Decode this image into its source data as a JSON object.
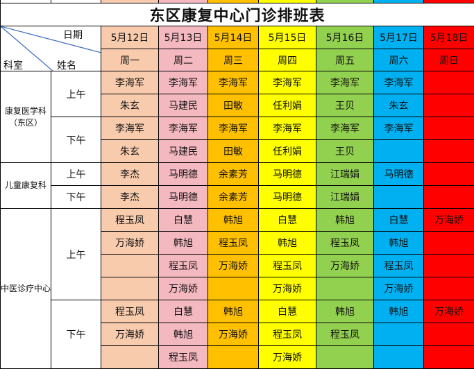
{
  "title": "东区康复中心门诊排班表",
  "corner": {
    "date_label": "日期",
    "dept_label": "科室",
    "name_label": "姓名"
  },
  "day_colors": [
    "#f8cbad",
    "#f4b8c0",
    "#ffc000",
    "#ffff00",
    "#92d050",
    "#00b0f0",
    "#ff0000"
  ],
  "dates": [
    "5月12日",
    "5月13日",
    "5月14日",
    "5月15日",
    "5月16日",
    "5月17日",
    "5月18日"
  ],
  "weekdays": [
    "周一",
    "周二",
    "周三",
    "周四",
    "周五",
    "周六",
    "周日"
  ],
  "departments": [
    {
      "name": "康复医学科（东区）",
      "sessions": [
        {
          "label": "上午",
          "rows": [
            [
              "李海军",
              "李海军",
              "李海军",
              "李海军",
              "李海军",
              "李海军",
              ""
            ],
            [
              "朱玄",
              "马建民",
              "田敏",
              "任利娟",
              "王贝",
              "朱玄",
              ""
            ]
          ]
        },
        {
          "label": "下午",
          "rows": [
            [
              "李海军",
              "李海军",
              "李海军",
              "李海军",
              "李海军",
              "李海军",
              ""
            ],
            [
              "朱玄",
              "马建民",
              "田敏",
              "任利娟",
              "王贝",
              "",
              ""
            ]
          ]
        }
      ]
    },
    {
      "name": "儿童康复科",
      "sessions": [
        {
          "label": "上午",
          "rows": [
            [
              "李杰",
              "马明德",
              "余素芳",
              "马明德",
              "江瑞娟",
              "马明德",
              ""
            ]
          ]
        },
        {
          "label": "下午",
          "rows": [
            [
              "李杰",
              "马明德",
              "余素芳",
              "马明德",
              "江瑞娟",
              "",
              ""
            ]
          ]
        }
      ]
    },
    {
      "name": "中医诊疗中心",
      "sessions": [
        {
          "label": "上午",
          "rows": [
            [
              "程玉凤",
              "白慧",
              "韩旭",
              "白慧",
              "韩旭",
              "白慧",
              "万海娇"
            ],
            [
              "万海娇",
              "韩旭",
              "程玉凤",
              "韩旭",
              "程玉凤",
              "韩旭",
              ""
            ],
            [
              "",
              "程玉凤",
              "万海娇",
              "程玉凤",
              "万海娇",
              "程玉凤",
              ""
            ],
            [
              "",
              "万海娇",
              "",
              "万海娇",
              "",
              "万海娇",
              ""
            ]
          ]
        },
        {
          "label": "下午",
          "rows": [
            [
              "程玉凤",
              "白慧",
              "韩旭",
              "白慧",
              "韩旭",
              "韩旭",
              "万海娇"
            ],
            [
              "万海娇",
              "韩旭",
              "万海娇",
              "程玉凤",
              "程玉凤",
              "",
              ""
            ],
            [
              "",
              "程玉凤",
              "",
              "万海娇",
              "",
              "",
              ""
            ]
          ]
        }
      ]
    }
  ]
}
